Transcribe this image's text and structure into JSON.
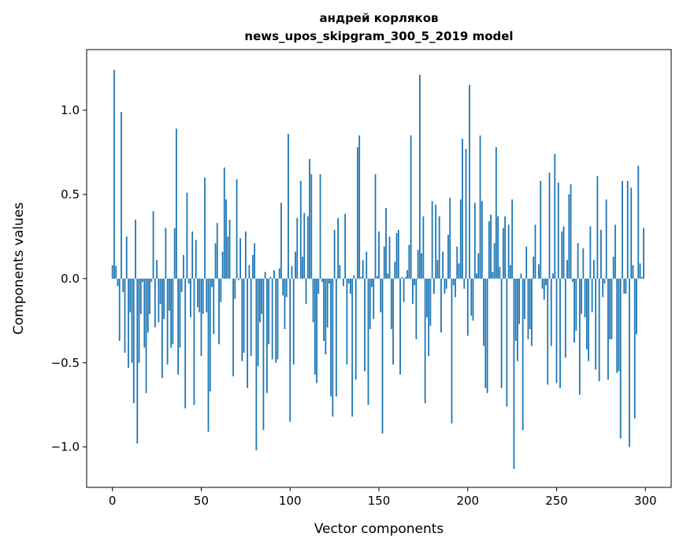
{
  "chart_data": {
    "type": "bar",
    "title": [
      "андрей корляков",
      "news_upos_skipgram_300_5_2019 model"
    ],
    "xlabel": "Vector components",
    "ylabel": "Components values",
    "xlim": [
      -14.5,
      314.5
    ],
    "ylim": [
      -1.24,
      1.36
    ],
    "xticks": [
      0,
      50,
      100,
      150,
      200,
      250,
      300
    ],
    "xtick_labels": [
      "0",
      "50",
      "100",
      "150",
      "200",
      "250",
      "300"
    ],
    "yticks": [
      -1.0,
      -0.5,
      0.0,
      0.5,
      1.0
    ],
    "ytick_labels": [
      "−1.0",
      "−0.5",
      "0.0",
      "0.5",
      "1.0"
    ],
    "grid": false,
    "bar_color": "#1f77b4",
    "values": [
      0.08,
      1.24,
      0.075,
      -0.045,
      -0.37,
      0.99,
      -0.08,
      -0.44,
      0.25,
      -0.53,
      -0.2,
      -0.5,
      -0.74,
      0.35,
      -0.98,
      -0.5,
      -0.21,
      -0.02,
      -0.41,
      -0.68,
      -0.32,
      -0.21,
      -0.02,
      0.4,
      -0.29,
      0.11,
      -0.26,
      -0.15,
      -0.59,
      -0.24,
      0.3,
      -0.51,
      -0.19,
      -0.41,
      -0.39,
      0.3,
      0.89,
      -0.57,
      -0.41,
      -0.08,
      0.14,
      -0.77,
      0.51,
      -0.03,
      -0.23,
      0.28,
      -0.75,
      0.23,
      -0.17,
      -0.2,
      -0.46,
      -0.21,
      0.6,
      -0.2,
      -0.91,
      -0.67,
      -0.05,
      -0.33,
      0.21,
      0.33,
      -0.39,
      -0.14,
      0.16,
      0.66,
      0.47,
      0.25,
      0.35,
      0.0,
      -0.58,
      -0.12,
      0.59,
      -0.01,
      0.24,
      -0.49,
      -0.44,
      0.28,
      -0.65,
      0.08,
      -0.46,
      0.14,
      0.21,
      -1.02,
      -0.52,
      -0.26,
      -0.21,
      -0.9,
      0.04,
      -0.68,
      -0.39,
      0.01,
      -0.48,
      0.05,
      -0.5,
      -0.48,
      0.06,
      0.45,
      -0.1,
      -0.3,
      -0.11,
      0.86,
      -0.85,
      0.075,
      -0.51,
      0.16,
      0.36,
      0.0,
      0.58,
      0.13,
      0.39,
      -0.15,
      0.37,
      0.71,
      0.62,
      -0.26,
      -0.57,
      -0.62,
      -0.09,
      0.62,
      -0.02,
      -0.37,
      -0.45,
      -0.29,
      -0.03,
      -0.7,
      -0.82,
      0.29,
      -0.7,
      0.36,
      0.08,
      0.0,
      -0.045,
      0.385,
      -0.51,
      -0.03,
      -0.09,
      -0.82,
      0.02,
      -0.6,
      0.78,
      0.85,
      0.01,
      0.11,
      -0.55,
      0.16,
      -0.75,
      -0.3,
      -0.05,
      -0.24,
      0.62,
      0.015,
      0.28,
      -0.2,
      -0.92,
      0.19,
      0.42,
      0.03,
      0.25,
      -0.3,
      -0.51,
      0.1,
      0.27,
      0.29,
      -0.57,
      0.01,
      -0.14,
      0.01,
      0.05,
      0.2,
      0.85,
      -0.15,
      -0.04,
      -0.36,
      0.17,
      1.21,
      0.15,
      0.37,
      -0.74,
      -0.23,
      -0.46,
      -0.28,
      0.46,
      -0.09,
      0.44,
      0.11,
      0.37,
      -0.32,
      0.16,
      -0.09,
      -0.06,
      0.26,
      0.48,
      -0.86,
      -0.04,
      -0.11,
      0.19,
      0.09,
      0.47,
      0.83,
      -0.06,
      0.77,
      -0.34,
      1.15,
      -0.22,
      -0.25,
      0.45,
      0.03,
      0.15,
      0.85,
      0.46,
      -0.4,
      -0.65,
      -0.68,
      0.34,
      0.38,
      0.04,
      0.21,
      0.78,
      0.37,
      0.07,
      -0.65,
      0.3,
      0.37,
      -0.76,
      0.32,
      0.08,
      0.47,
      -1.13,
      -0.37,
      -0.49,
      -0.27,
      0.03,
      -0.9,
      -0.24,
      0.19,
      -0.36,
      -0.3,
      -0.4,
      0.13,
      0.32,
      0.0,
      0.085,
      0.58,
      -0.06,
      -0.125,
      -0.04,
      -0.63,
      0.63,
      -0.4,
      0.03,
      0.74,
      -0.62,
      0.57,
      -0.65,
      0.28,
      0.31,
      -0.47,
      0.11,
      0.5,
      0.56,
      -0.02,
      -0.38,
      -0.31,
      0.21,
      -0.69,
      -0.21,
      0.18,
      -0.23,
      -0.42,
      -0.49,
      0.31,
      -0.2,
      0.11,
      -0.54,
      0.61,
      -0.61,
      0.29,
      -0.11,
      -0.03,
      0.47,
      -0.6,
      -0.36,
      -0.36,
      0.13,
      0.32,
      -0.56,
      -0.55,
      -0.95,
      0.58,
      -0.09,
      -0.09,
      0.58,
      -1.0,
      0.54,
      0.08,
      -0.83,
      -0.33,
      0.67,
      0.09,
      0.01,
      0.3
    ]
  }
}
